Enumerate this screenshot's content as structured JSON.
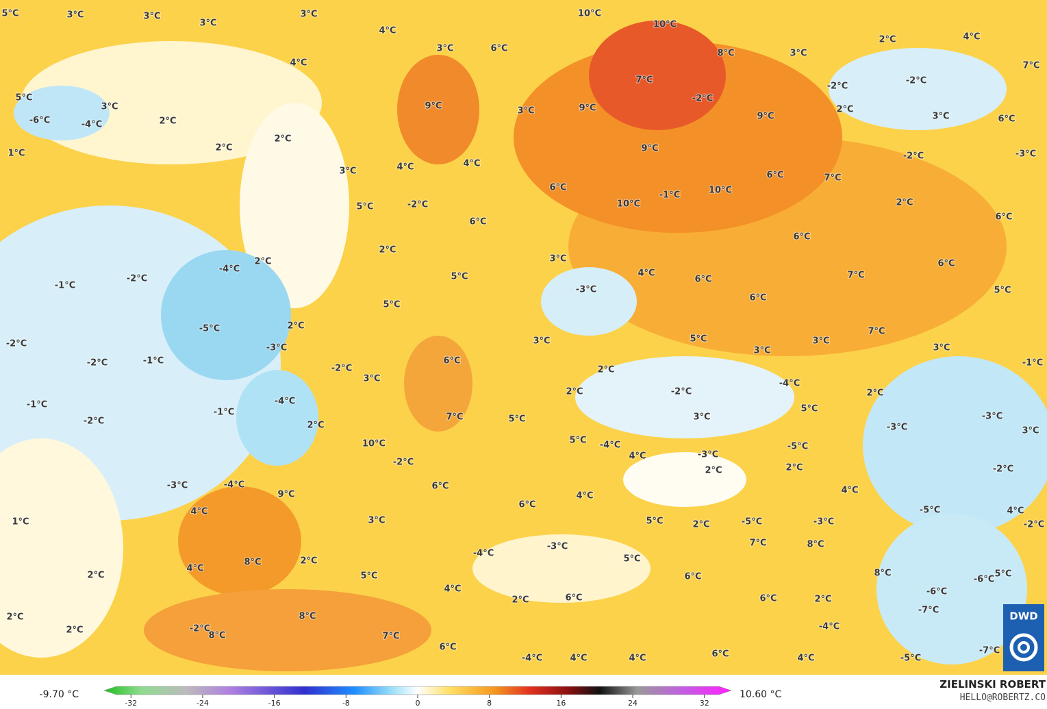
{
  "labels": [
    "5°C",
    "3°C",
    "3°C",
    "3°C",
    "3°C",
    "4°C",
    "3°C",
    "6°C",
    "10°C",
    "10°C",
    "8°C",
    "3°C",
    "2°C",
    "4°C",
    "7°C",
    "4°C",
    "5°C",
    "3°C",
    "-6°C",
    "-4°C",
    "2°C",
    "9°C",
    "3°C",
    "9°C",
    "7°C",
    "-2°C",
    "9°C",
    "-2°C",
    "-2°C",
    "2°C",
    "3°C",
    "6°C",
    "1°C",
    "2°C",
    "2°C",
    "9°C",
    "-3°C",
    "-2°C",
    "3°C",
    "4°C",
    "4°C",
    "6°C",
    "10°C",
    "6°C",
    "7°C",
    "-1°C",
    "10°C",
    "-2°C",
    "5°C",
    "2°C",
    "6°C",
    "6°C",
    "6°C",
    "2°C",
    "3°C",
    "2°C",
    "-4°C",
    "4°C",
    "6°C",
    "6°C",
    "7°C",
    "-1°C",
    "-2°C",
    "5°C",
    "-3°C",
    "6°C",
    "5°C",
    "5°C",
    "2°C",
    "-5°C",
    "7°C",
    "-2°C",
    "-3°C",
    "3°C",
    "5°C",
    "3°C",
    "3°C",
    "3°C",
    "-1°C",
    "-2°C",
    "-1°C",
    "6°C",
    "-2°C",
    "2°C",
    "3°C",
    "-4°C",
    "-2°C",
    "2°C",
    "2°C",
    "-4°C",
    "-1°C",
    "-1°C",
    "5°C",
    "3°C",
    "7°C",
    "5°C",
    "-3°C",
    "-2°C",
    "2°C",
    "-3°C",
    "3°C",
    "10°C",
    "5°C",
    "-4°C",
    "-5°C",
    "4°C",
    "-3°C",
    "-2°C",
    "2°C",
    "2°C",
    "-2°C",
    "-3°C",
    "-4°C",
    "6°C",
    "9°C",
    "4°C",
    "4°C",
    "4°C",
    "6°C",
    "-5°C",
    "4°C",
    "1°C",
    "3°C",
    "5°C",
    "2°C",
    "-5°C",
    "-3°C",
    "-2°C",
    "7°C",
    "8°C",
    "-3°C",
    "-4°C",
    "5°C",
    "8°C",
    "2°C",
    "4°C",
    "2°C",
    "5°C",
    "8°C",
    "5°C",
    "-6°C",
    "6°C",
    "4°C",
    "-6°C",
    "2°C",
    "6°C",
    "6°C",
    "2°C",
    "-7°C",
    "2°C",
    "8°C",
    "-2°C",
    "2°C",
    "8°C",
    "-4°C",
    "7°C",
    "6°C",
    "-7°C",
    "6°C",
    "-4°C",
    "4°C",
    "4°C",
    "4°C",
    "-5°C"
  ],
  "legend": {
    "min_label": "-9.70 °C",
    "max_label": "10.60 °C",
    "lim": [
      -35,
      35
    ],
    "ticks": [
      -32,
      -24,
      -16,
      -8,
      0,
      8,
      16,
      24,
      32
    ]
  },
  "credit": {
    "author": "ZIELINSKI ROBERT",
    "email": "HELLO@ROBERTZ.CO"
  },
  "logo": "DWD"
}
